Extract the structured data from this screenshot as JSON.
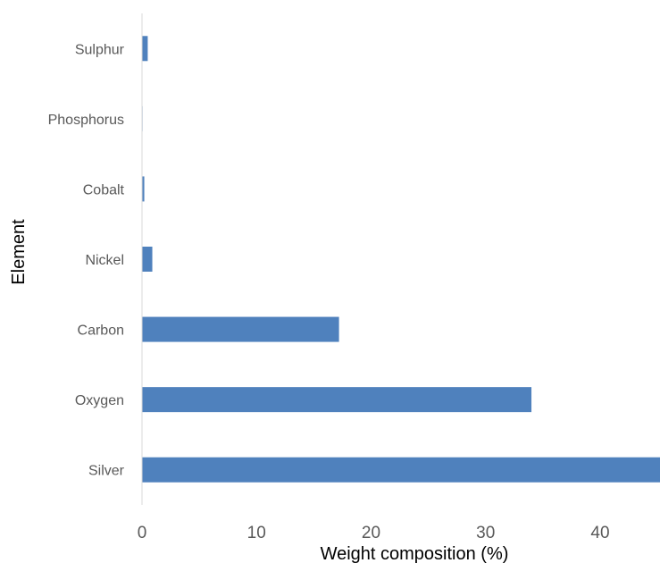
{
  "chart_data": {
    "type": "bar",
    "orientation": "horizontal",
    "title": "",
    "xlabel": "Weight composition (%)",
    "ylabel": "Element",
    "categories": [
      "Silver",
      "Oxygen",
      "Carbon",
      "Nickel",
      "Cobalt",
      "Phosphorus",
      "Sulphur"
    ],
    "values": [
      47.2,
      34.0,
      17.2,
      0.9,
      0.2,
      0.05,
      0.5
    ],
    "xlim": [
      0,
      45
    ],
    "xticks": [
      0,
      10,
      20,
      30,
      40
    ],
    "grid": false,
    "legend": "none",
    "bar_color": "#4f81bd",
    "axis_color": "#d9d9d9"
  }
}
